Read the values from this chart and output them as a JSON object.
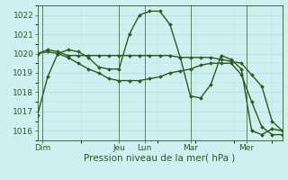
{
  "title": "",
  "xlabel": "Pression niveau de la mer( hPa )",
  "bg_color": "#cff0f0",
  "grid_color": "#b0dede",
  "line_color": "#2d5a1e",
  "ylim": [
    1015.5,
    1022.5
  ],
  "yticks": [
    1016,
    1017,
    1018,
    1019,
    1020,
    1021,
    1022
  ],
  "day_labels": [
    "Dim",
    "Jeu",
    "Lun",
    "Mar",
    "Mer"
  ],
  "day_positions": [
    0.5,
    8.0,
    10.5,
    15.0,
    20.5
  ],
  "vline_positions": [
    0.5,
    8.0,
    10.5,
    15.0,
    20.5
  ],
  "xlim": [
    0,
    24
  ],
  "series": [
    [
      1016.8,
      1018.8,
      1020.0,
      1020.2,
      1020.1,
      1019.8,
      1019.3,
      1019.2,
      1019.2,
      1021.0,
      1022.0,
      1022.2,
      1022.2,
      1021.5,
      1019.8,
      1017.8,
      1017.7,
      1018.4,
      1019.9,
      1019.7,
      1019.2,
      1016.0,
      1015.8,
      1016.1,
      1016.0
    ],
    [
      1020.0,
      1020.2,
      1020.1,
      1019.9,
      1019.9,
      1019.9,
      1019.9,
      1019.9,
      1019.9,
      1019.9,
      1019.9,
      1019.9,
      1019.9,
      1019.9,
      1019.8,
      1019.8,
      1019.8,
      1019.8,
      1019.7,
      1019.6,
      1019.5,
      1018.9,
      1018.3,
      1016.5,
      1016.0
    ],
    [
      1020.0,
      1020.1,
      1020.0,
      1019.8,
      1019.5,
      1019.2,
      1019.0,
      1018.7,
      1018.6,
      1018.6,
      1018.6,
      1018.7,
      1018.8,
      1019.0,
      1019.1,
      1019.2,
      1019.4,
      1019.5,
      1019.5,
      1019.5,
      1018.9,
      1017.5,
      1016.2,
      1015.8,
      1015.8
    ]
  ],
  "marker": "D",
  "marker_size": 2.0,
  "line_width": 1.0,
  "font_size_ticks": 6.5,
  "font_size_xlabel": 7.5
}
